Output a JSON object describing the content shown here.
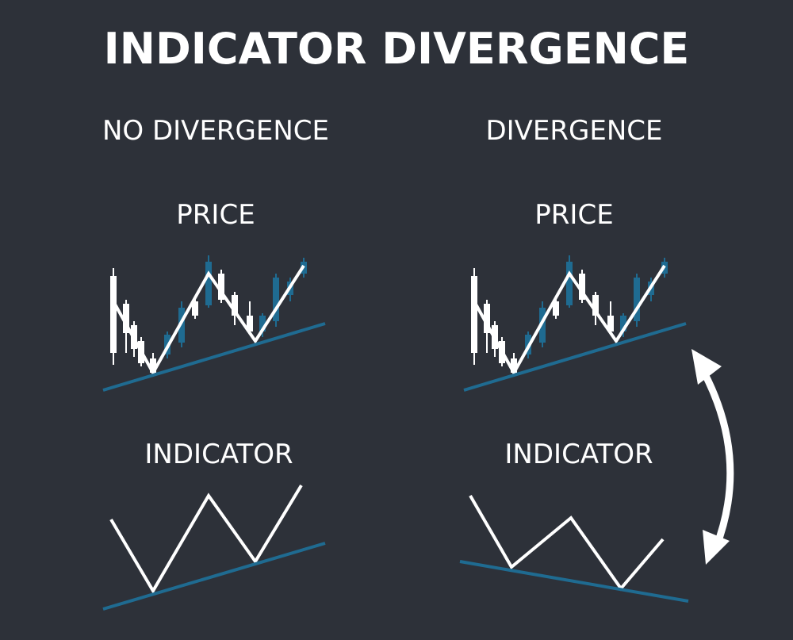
{
  "title": "INDICATOR DIVERGENCE",
  "panels": [
    {
      "heading": "NO DIVERGENCE",
      "price_label": "PRICE",
      "indicator_label": "INDICATOR"
    },
    {
      "heading": "DIVERGENCE",
      "price_label": "PRICE",
      "indicator_label": "INDICATOR"
    }
  ]
}
